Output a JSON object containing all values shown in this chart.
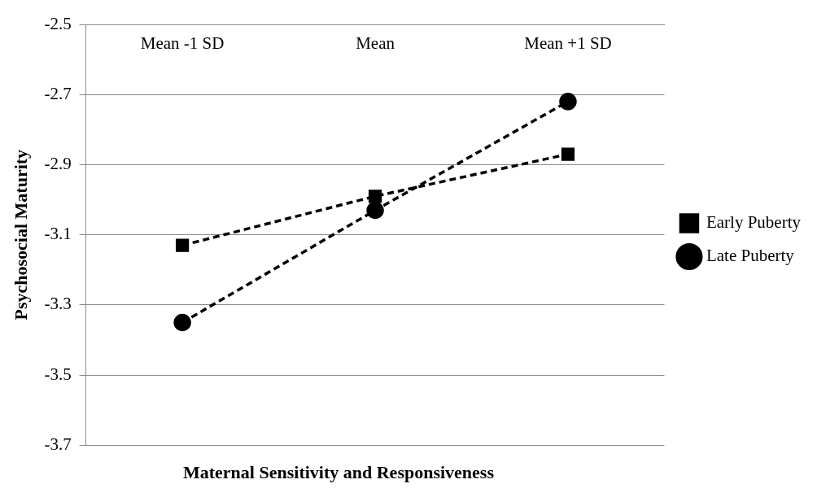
{
  "chart_data": {
    "type": "line",
    "xlabel": "Maternal Sensitivity and Responsiveness",
    "ylabel": "Psychosocial Maturity",
    "categories": [
      "Mean -1 SD",
      "Mean",
      "Mean +1 SD"
    ],
    "series": [
      {
        "name": "Early Puberty",
        "color": "#000000",
        "values": [
          -3.13,
          -2.99,
          -2.87
        ],
        "marker": "square"
      },
      {
        "name": "Late Puberty",
        "color": "#000000",
        "values": [
          -3.35,
          -3.03,
          -2.72
        ],
        "marker": "circle"
      }
    ],
    "ylim": [
      -3.7,
      -2.5
    ],
    "yticks": [
      -3.7,
      -3.5,
      -3.3,
      -3.1,
      -2.9,
      -2.7,
      -2.5
    ],
    "grid": "y",
    "legend": "right",
    "line_style": "dashed"
  }
}
